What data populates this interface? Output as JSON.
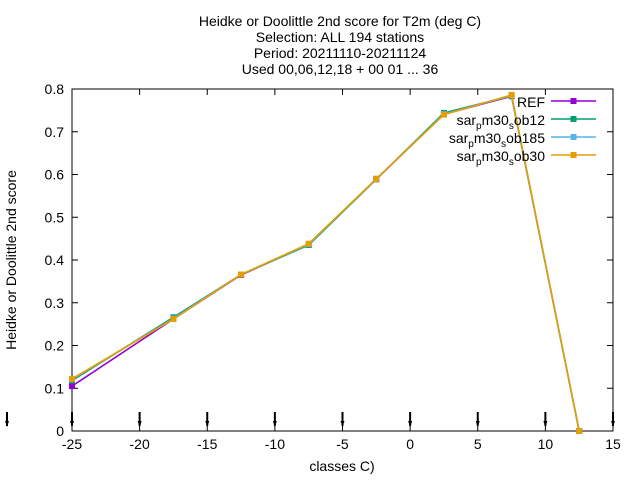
{
  "chart_data": {
    "type": "line",
    "title_lines": [
      "Heidke or Doolittle 2nd score  for T2m (deg C)",
      "Selection: ALL    194 stations",
      "Period: 20211110-20211124",
      "Used 00,06,12,18 + 00 01 ... 36"
    ],
    "xlabel": "classes C)",
    "ylabel": "Heidke or Doolittle 2nd score",
    "xlim": [
      -25,
      15
    ],
    "ylim": [
      0,
      0.8
    ],
    "xticks": [
      "-25",
      "-20",
      "-15",
      "-10",
      "-5",
      "0",
      "5",
      "10",
      "15"
    ],
    "yticks": [
      "0",
      "0.1",
      "0.2",
      "0.3",
      "0.4",
      "0.5",
      "0.6",
      "0.7",
      "0.8"
    ],
    "grid": false,
    "legend_position": "top-right",
    "x": [
      -25,
      -17.5,
      -12.5,
      -7.5,
      -2.5,
      2.5,
      7.5,
      12.5
    ],
    "series": [
      {
        "name": "REF",
        "color": "#9400d3",
        "values": [
          0.105,
          0.262,
          0.365,
          0.436,
          0.589,
          0.741,
          0.783,
          0.0
        ]
      },
      {
        "name_base": "sar",
        "name_sub": "p",
        "name_mid": "m30",
        "name_sub2": "s",
        "name_tail": "ob12",
        "color": "#009e73",
        "values": [
          0.118,
          0.266,
          0.366,
          0.435,
          0.589,
          0.744,
          0.784,
          0.0
        ]
      },
      {
        "name_base": "sar",
        "name_sub": "p",
        "name_mid": "m30",
        "name_sub2": "s",
        "name_tail": "ob185",
        "color": "#56b4e9",
        "values": [
          0.121,
          0.263,
          0.366,
          0.437,
          0.59,
          0.741,
          0.785,
          0.0
        ]
      },
      {
        "name_base": "sar",
        "name_sub": "p",
        "name_mid": "m30",
        "name_sub2": "s",
        "name_tail": "ob30",
        "color": "#e69f00",
        "values": [
          0.122,
          0.262,
          0.366,
          0.438,
          0.59,
          0.74,
          0.786,
          0.0
        ]
      }
    ],
    "arrow_markers_x": [
      -25,
      -20,
      -15,
      -10,
      -5,
      0,
      5,
      10,
      15
    ]
  }
}
